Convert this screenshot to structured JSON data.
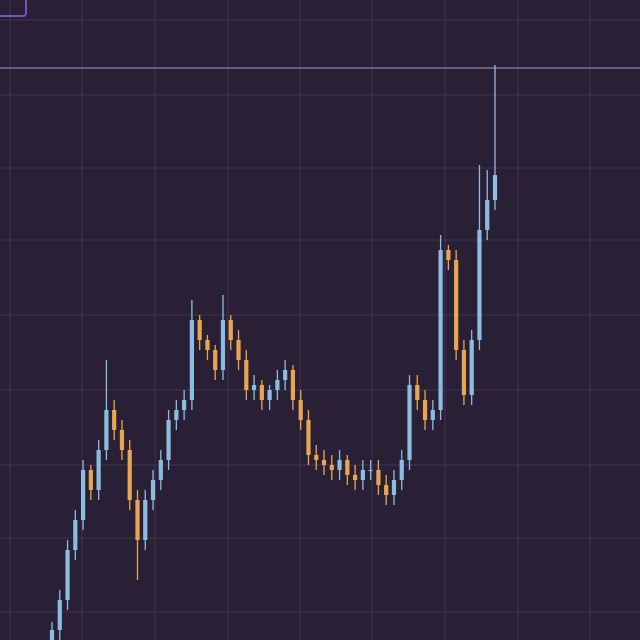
{
  "chart_data": {
    "type": "candlestick",
    "ylim": [
      0,
      640
    ],
    "yticks": [
      28,
      102,
      175,
      250,
      325,
      400,
      472,
      545,
      620
    ],
    "grid": true,
    "price_line": 572,
    "up_color": "#8cbde0",
    "down_color": "#e8a552",
    "open": [
      0,
      10,
      40,
      90,
      120,
      170,
      150,
      190,
      230,
      210,
      190,
      140,
      100,
      140,
      160,
      180,
      220,
      230,
      240,
      320,
      300,
      290,
      270,
      320,
      300,
      280,
      250,
      255,
      240,
      250,
      260,
      270,
      240,
      220,
      185,
      180,
      175,
      170,
      180,
      165,
      160,
      170,
      170,
      155,
      145,
      160,
      180,
      255,
      240,
      220,
      230,
      390,
      380,
      290,
      245,
      300,
      410,
      440
    ],
    "high": [
      18,
      50,
      100,
      130,
      180,
      175,
      200,
      280,
      240,
      220,
      200,
      150,
      150,
      170,
      190,
      230,
      240,
      250,
      340,
      325,
      305,
      295,
      345,
      325,
      310,
      290,
      265,
      260,
      255,
      270,
      280,
      275,
      250,
      230,
      195,
      190,
      185,
      190,
      185,
      175,
      180,
      180,
      180,
      165,
      170,
      190,
      265,
      265,
      250,
      240,
      405,
      395,
      390,
      300,
      310,
      475,
      470,
      575
    ],
    "low": [
      0,
      0,
      30,
      80,
      110,
      140,
      140,
      180,
      200,
      180,
      130,
      60,
      90,
      130,
      150,
      170,
      210,
      220,
      230,
      290,
      280,
      260,
      260,
      290,
      270,
      240,
      240,
      230,
      230,
      240,
      250,
      230,
      210,
      175,
      170,
      165,
      160,
      160,
      155,
      150,
      150,
      160,
      145,
      135,
      135,
      150,
      170,
      230,
      210,
      210,
      220,
      370,
      280,
      235,
      235,
      290,
      400,
      430
    ],
    "close": [
      10,
      40,
      90,
      120,
      170,
      150,
      190,
      230,
      210,
      190,
      140,
      100,
      140,
      160,
      180,
      220,
      230,
      240,
      320,
      300,
      290,
      270,
      320,
      300,
      280,
      250,
      255,
      240,
      250,
      260,
      270,
      240,
      220,
      185,
      180,
      175,
      170,
      180,
      165,
      160,
      170,
      170,
      155,
      145,
      160,
      180,
      255,
      240,
      220,
      230,
      390,
      380,
      290,
      245,
      300,
      410,
      440,
      465
    ]
  }
}
